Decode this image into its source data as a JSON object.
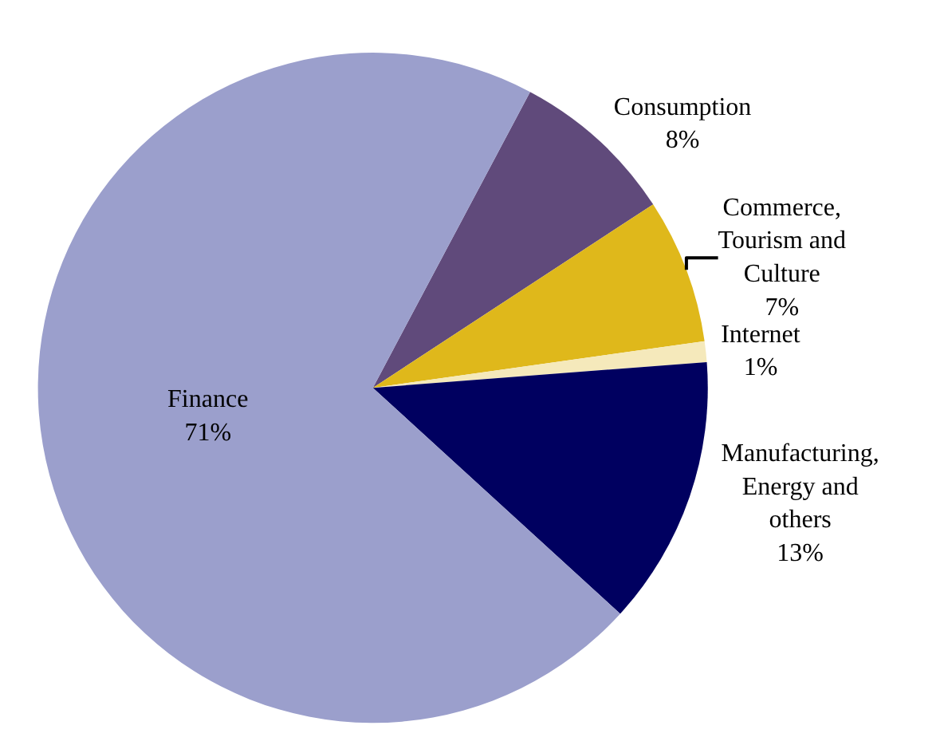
{
  "chart_data": {
    "type": "pie",
    "categories": [
      "Consumption",
      "Commerce, Tourism and Culture",
      "Internet",
      "Manufacturing, Energy and others",
      "Finance"
    ],
    "values": [
      8,
      7,
      1,
      13,
      71
    ],
    "colors": [
      "#604a7b",
      "#dfb81b",
      "#f5e9bb",
      "#000060",
      "#9b9fcc"
    ],
    "value_labels": [
      "8%",
      "7%",
      "1%",
      "13%",
      "71%"
    ],
    "legend": false
  }
}
